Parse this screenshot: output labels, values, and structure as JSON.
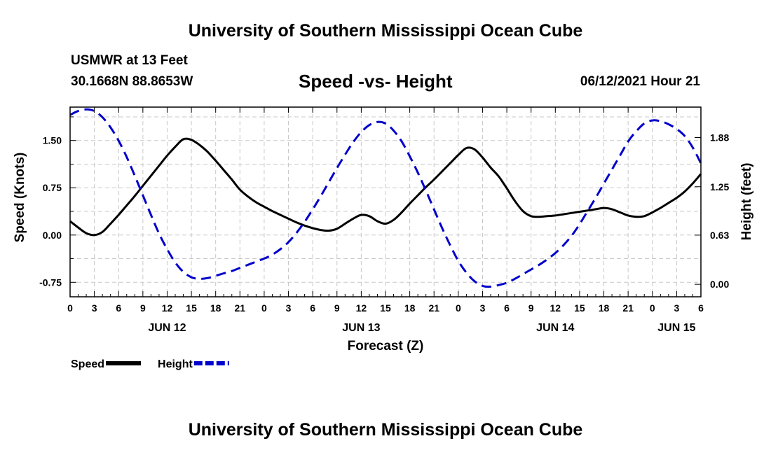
{
  "header": {
    "title_top": "University of Southern Mississippi Ocean Cube",
    "station": "USMWR at 13 Feet",
    "coords": "30.1668N  88.8653W",
    "chart_title": "Speed -vs- Height",
    "timestamp": "06/12/2021 Hour 21",
    "title_bottom": "University of Southern Mississippi Ocean Cube"
  },
  "chart_data": {
    "type": "line",
    "title": "Speed -vs- Height",
    "xlabel": "Forecast (Z)",
    "ylabel": "Speed (Knots)",
    "ylabel_right": "Height (feet)",
    "x_hours_range": [
      0,
      78
    ],
    "ylim": [
      -0.98,
      2.03
    ],
    "ylim_right": [
      -0.16,
      2.27
    ],
    "grid": true,
    "legend_position": "bottom-left",
    "x_ticks": [
      {
        "h": 0,
        "label": "0"
      },
      {
        "h": 3,
        "label": "3"
      },
      {
        "h": 6,
        "label": "6"
      },
      {
        "h": 9,
        "label": "9"
      },
      {
        "h": 12,
        "label": "12"
      },
      {
        "h": 15,
        "label": "15"
      },
      {
        "h": 18,
        "label": "18"
      },
      {
        "h": 21,
        "label": "21"
      },
      {
        "h": 24,
        "label": "0"
      },
      {
        "h": 27,
        "label": "3"
      },
      {
        "h": 30,
        "label": "6"
      },
      {
        "h": 33,
        "label": "9"
      },
      {
        "h": 36,
        "label": "12"
      },
      {
        "h": 39,
        "label": "15"
      },
      {
        "h": 42,
        "label": "18"
      },
      {
        "h": 45,
        "label": "21"
      },
      {
        "h": 48,
        "label": "0"
      },
      {
        "h": 51,
        "label": "3"
      },
      {
        "h": 54,
        "label": "6"
      },
      {
        "h": 57,
        "label": "9"
      },
      {
        "h": 60,
        "label": "12"
      },
      {
        "h": 63,
        "label": "15"
      },
      {
        "h": 66,
        "label": "18"
      },
      {
        "h": 69,
        "label": "21"
      },
      {
        "h": 72,
        "label": "0"
      },
      {
        "h": 75,
        "label": "3"
      },
      {
        "h": 78,
        "label": "6"
      }
    ],
    "day_labels": [
      {
        "h": 12,
        "label": "JUN 12"
      },
      {
        "h": 36,
        "label": "JUN 13"
      },
      {
        "h": 60,
        "label": "JUN 14"
      },
      {
        "h": 75,
        "label": "JUN 15"
      }
    ],
    "y_ticks_left": [
      {
        "v": 1.5,
        "label": "1.50"
      },
      {
        "v": 0.75,
        "label": "0.75"
      },
      {
        "v": 0.0,
        "label": "0.00"
      },
      {
        "v": -0.75,
        "label": "-0.75"
      }
    ],
    "y_ticks_right": [
      {
        "v": 1.88,
        "label": "1.88"
      },
      {
        "v": 1.25,
        "label": "1.25"
      },
      {
        "v": 0.63,
        "label": "0.63"
      },
      {
        "v": 0.0,
        "label": "0.00"
      }
    ],
    "series": [
      {
        "name": "Speed",
        "axis": "left",
        "color": "#000000",
        "dash": "solid",
        "points": [
          [
            0,
            0.22
          ],
          [
            1,
            0.12
          ],
          [
            2,
            0.03
          ],
          [
            3,
            0.0
          ],
          [
            4,
            0.05
          ],
          [
            5,
            0.18
          ],
          [
            6,
            0.32
          ],
          [
            7,
            0.47
          ],
          [
            8,
            0.62
          ],
          [
            9,
            0.78
          ],
          [
            10,
            0.94
          ],
          [
            11,
            1.1
          ],
          [
            12,
            1.26
          ],
          [
            13,
            1.4
          ],
          [
            14,
            1.52
          ],
          [
            15,
            1.51
          ],
          [
            16,
            1.43
          ],
          [
            17,
            1.32
          ],
          [
            18,
            1.18
          ],
          [
            19,
            1.03
          ],
          [
            20,
            0.88
          ],
          [
            21,
            0.72
          ],
          [
            22,
            0.61
          ],
          [
            23,
            0.52
          ],
          [
            24,
            0.45
          ],
          [
            25,
            0.38
          ],
          [
            26,
            0.32
          ],
          [
            27,
            0.26
          ],
          [
            28,
            0.2
          ],
          [
            29,
            0.15
          ],
          [
            30,
            0.11
          ],
          [
            31,
            0.08
          ],
          [
            32,
            0.07
          ],
          [
            33,
            0.1
          ],
          [
            34,
            0.18
          ],
          [
            35,
            0.26
          ],
          [
            36,
            0.32
          ],
          [
            37,
            0.3
          ],
          [
            38,
            0.22
          ],
          [
            39,
            0.18
          ],
          [
            40,
            0.24
          ],
          [
            41,
            0.36
          ],
          [
            42,
            0.5
          ],
          [
            43,
            0.63
          ],
          [
            44,
            0.76
          ],
          [
            45,
            0.88
          ],
          [
            46,
            1.01
          ],
          [
            47,
            1.14
          ],
          [
            48,
            1.27
          ],
          [
            49,
            1.38
          ],
          [
            50,
            1.36
          ],
          [
            51,
            1.23
          ],
          [
            52,
            1.07
          ],
          [
            53,
            0.93
          ],
          [
            54,
            0.74
          ],
          [
            55,
            0.54
          ],
          [
            56,
            0.38
          ],
          [
            57,
            0.3
          ],
          [
            58,
            0.29
          ],
          [
            59,
            0.3
          ],
          [
            60,
            0.31
          ],
          [
            61,
            0.33
          ],
          [
            62,
            0.35
          ],
          [
            63,
            0.37
          ],
          [
            64,
            0.39
          ],
          [
            65,
            0.41
          ],
          [
            66,
            0.43
          ],
          [
            67,
            0.41
          ],
          [
            68,
            0.36
          ],
          [
            69,
            0.31
          ],
          [
            70,
            0.29
          ],
          [
            71,
            0.3
          ],
          [
            72,
            0.36
          ],
          [
            73,
            0.43
          ],
          [
            74,
            0.51
          ],
          [
            75,
            0.59
          ],
          [
            76,
            0.69
          ],
          [
            77,
            0.82
          ],
          [
            78,
            0.97
          ]
        ]
      },
      {
        "name": "Height",
        "axis": "right",
        "color": "#0000cc",
        "dash": "dashed",
        "points": [
          [
            0,
            2.17
          ],
          [
            1,
            2.22
          ],
          [
            2,
            2.24
          ],
          [
            3,
            2.22
          ],
          [
            4,
            2.14
          ],
          [
            5,
            2.01
          ],
          [
            6,
            1.84
          ],
          [
            7,
            1.63
          ],
          [
            8,
            1.39
          ],
          [
            9,
            1.14
          ],
          [
            10,
            0.89
          ],
          [
            11,
            0.65
          ],
          [
            12,
            0.45
          ],
          [
            13,
            0.28
          ],
          [
            14,
            0.16
          ],
          [
            15,
            0.09
          ],
          [
            16,
            0.07
          ],
          [
            17,
            0.08
          ],
          [
            18,
            0.11
          ],
          [
            19,
            0.14
          ],
          [
            20,
            0.17
          ],
          [
            21,
            0.21
          ],
          [
            22,
            0.25
          ],
          [
            23,
            0.29
          ],
          [
            24,
            0.33
          ],
          [
            25,
            0.38
          ],
          [
            26,
            0.45
          ],
          [
            27,
            0.54
          ],
          [
            28,
            0.66
          ],
          [
            29,
            0.8
          ],
          [
            30,
            0.96
          ],
          [
            31,
            1.13
          ],
          [
            32,
            1.31
          ],
          [
            33,
            1.49
          ],
          [
            34,
            1.66
          ],
          [
            35,
            1.82
          ],
          [
            36,
            1.95
          ],
          [
            37,
            2.04
          ],
          [
            38,
            2.08
          ],
          [
            39,
            2.06
          ],
          [
            40,
            1.97
          ],
          [
            41,
            1.83
          ],
          [
            42,
            1.64
          ],
          [
            43,
            1.43
          ],
          [
            44,
            1.2
          ],
          [
            45,
            0.96
          ],
          [
            46,
            0.72
          ],
          [
            47,
            0.5
          ],
          [
            48,
            0.3
          ],
          [
            49,
            0.15
          ],
          [
            50,
            0.04
          ],
          [
            51,
            -0.02
          ],
          [
            52,
            -0.03
          ],
          [
            53,
            -0.01
          ],
          [
            54,
            0.02
          ],
          [
            55,
            0.07
          ],
          [
            56,
            0.13
          ],
          [
            57,
            0.19
          ],
          [
            58,
            0.25
          ],
          [
            59,
            0.32
          ],
          [
            60,
            0.4
          ],
          [
            61,
            0.5
          ],
          [
            62,
            0.62
          ],
          [
            63,
            0.77
          ],
          [
            64,
            0.94
          ],
          [
            65,
            1.11
          ],
          [
            66,
            1.29
          ],
          [
            67,
            1.47
          ],
          [
            68,
            1.65
          ],
          [
            69,
            1.83
          ],
          [
            70,
            1.96
          ],
          [
            71,
            2.06
          ],
          [
            72,
            2.1
          ],
          [
            73,
            2.09
          ],
          [
            74,
            2.05
          ],
          [
            75,
            1.99
          ],
          [
            76,
            1.9
          ],
          [
            77,
            1.75
          ],
          [
            78,
            1.55
          ]
        ]
      }
    ]
  }
}
